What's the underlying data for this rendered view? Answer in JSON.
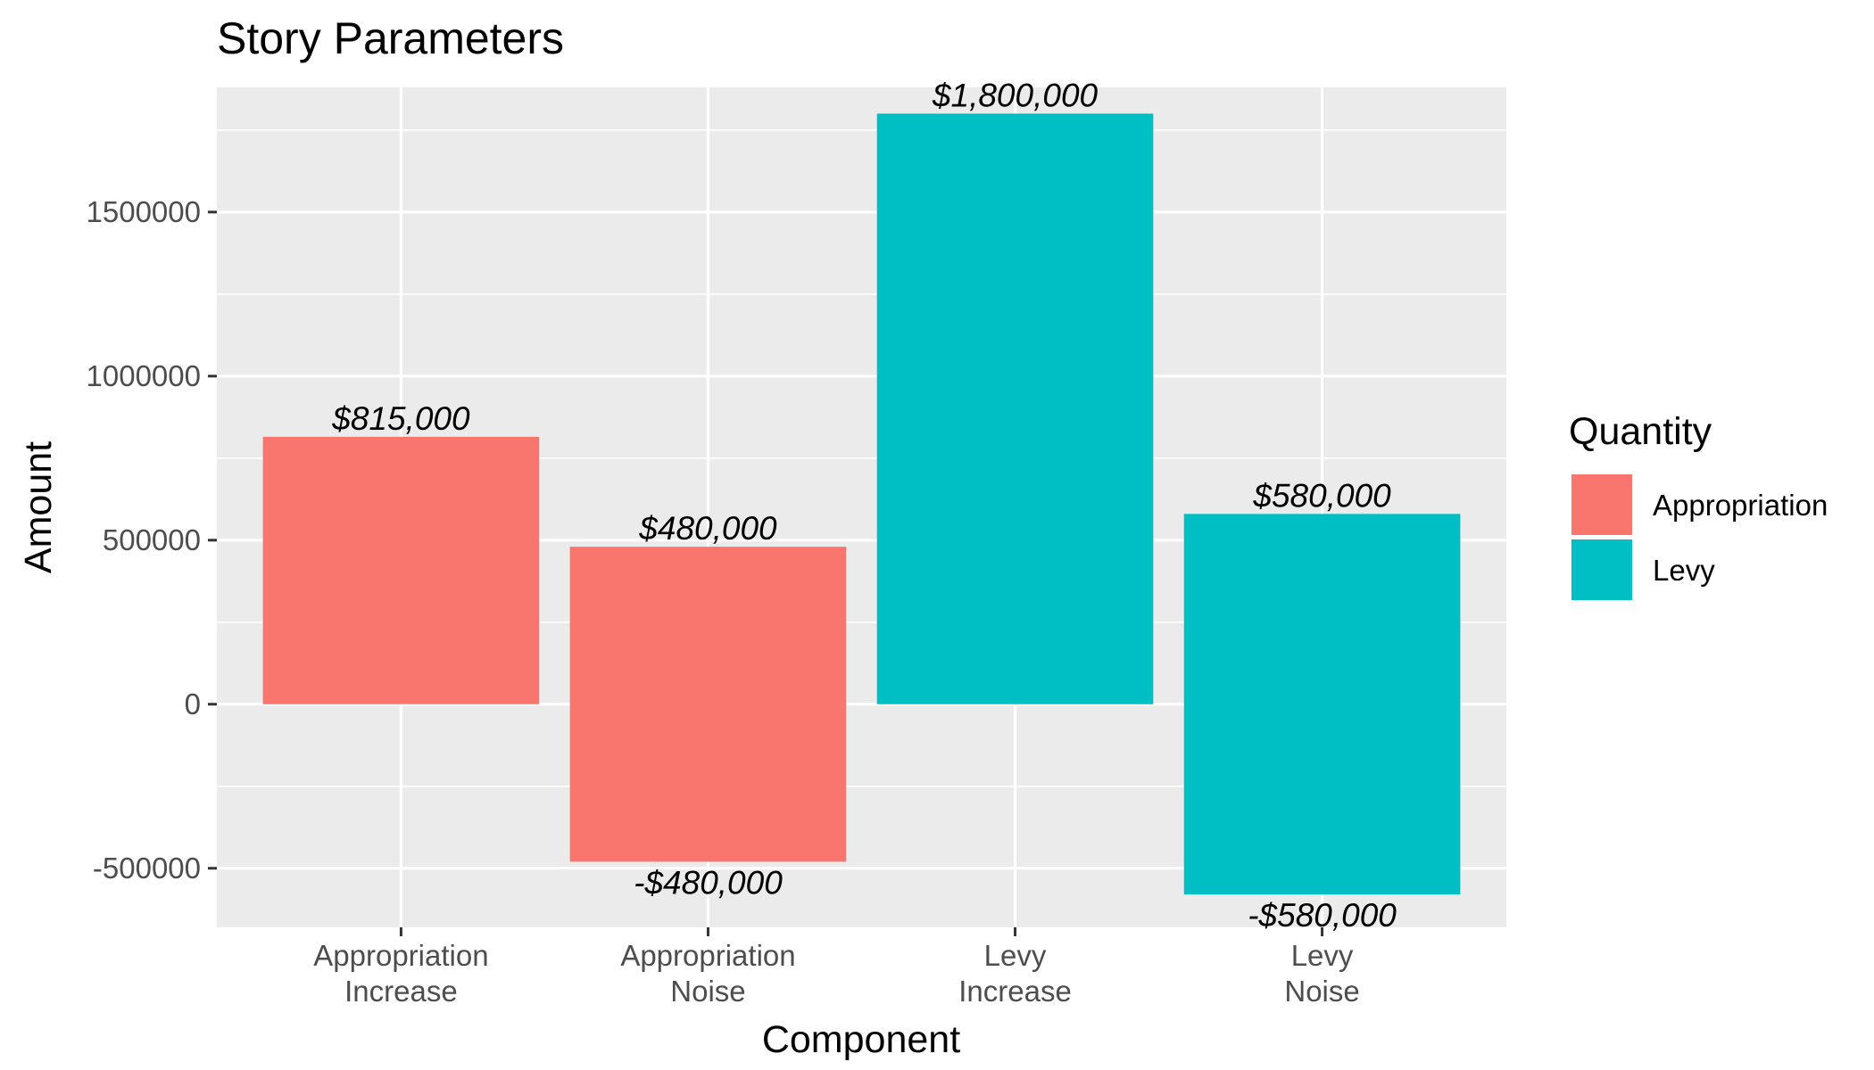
{
  "chart_data": {
    "type": "bar",
    "title": "Story Parameters",
    "xlabel": "Component",
    "ylabel": "Amount",
    "ylim": [
      -680000,
      1880000
    ],
    "y_ticks": [
      -500000,
      0,
      500000,
      1000000,
      1500000
    ],
    "y_tick_labels": [
      "-500000",
      "0",
      "500000",
      "1000000",
      "1500000"
    ],
    "categories": [
      [
        "Appropriation",
        "Increase"
      ],
      [
        "Appropriation",
        "Noise"
      ],
      [
        "Levy",
        "Increase"
      ],
      [
        "Levy",
        "Noise"
      ]
    ],
    "bars": [
      {
        "category_index": 0,
        "ymin": 0,
        "ymax": 815000,
        "group": "Appropriation"
      },
      {
        "category_index": 1,
        "ymin": -480000,
        "ymax": 480000,
        "group": "Appropriation"
      },
      {
        "category_index": 2,
        "ymin": 0,
        "ymax": 1800000,
        "group": "Levy"
      },
      {
        "category_index": 3,
        "ymin": -580000,
        "ymax": 580000,
        "group": "Levy"
      }
    ],
    "data_labels": [
      {
        "category_index": 0,
        "value": 815000,
        "text": "$815,000"
      },
      {
        "category_index": 1,
        "value": 480000,
        "text": "$480,000"
      },
      {
        "category_index": 1,
        "value": -480000,
        "text": "-$480,000"
      },
      {
        "category_index": 2,
        "value": 1800000,
        "text": "$1,800,000"
      },
      {
        "category_index": 3,
        "value": 580000,
        "text": "$580,000"
      },
      {
        "category_index": 3,
        "value": -580000,
        "text": "-$580,000"
      }
    ],
    "legend": {
      "title": "Quantity",
      "position": "right",
      "entries": [
        {
          "name": "Appropriation",
          "color": "#F8766D"
        },
        {
          "name": "Levy",
          "color": "#00BFC4"
        }
      ]
    },
    "colors": {
      "Appropriation": "#F8766D",
      "Levy": "#00BFC4",
      "panel_background": "#EBEBEB",
      "grid": "#FFFFFF"
    },
    "grid": true
  }
}
